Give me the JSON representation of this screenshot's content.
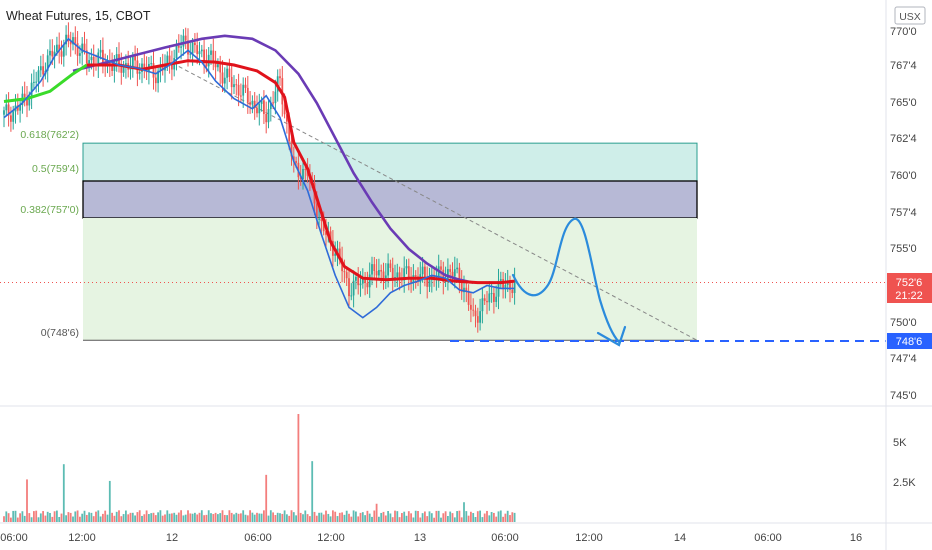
{
  "title": "Wheat Futures, 15, CBOT",
  "currency_label": "USX",
  "colors": {
    "up": "#26a69a",
    "down": "#ef5350",
    "ma_green": "#3adb2a",
    "ma_red": "#e0121b",
    "ma_blue": "#2f6bd8",
    "ma_purple": "#6a3bb5",
    "drawing": "#2b8bdc",
    "fib_label": "#6aa84f",
    "current_tag": "#ef5350",
    "target_tag": "#2962ff"
  },
  "price_axis": {
    "ticks": [
      "770'0",
      "767'4",
      "765'0",
      "762'4",
      "760'0",
      "757'4",
      "755'0",
      "750'0",
      "747'4",
      "745'0"
    ],
    "current_price": "752'6",
    "countdown": "21:22",
    "target_price": "748'6"
  },
  "volume_axis": {
    "ticks": [
      "5K",
      "2.5K"
    ]
  },
  "time_axis": {
    "ticks": [
      "06:00",
      "12:00",
      "12",
      "06:00",
      "12:00",
      "13",
      "06:00",
      "12:00",
      "14",
      "06:00",
      "16"
    ]
  },
  "fib_levels": [
    {
      "label": "0.618(762'2)",
      "price": 762.25
    },
    {
      "label": "0.5(759'4)",
      "price": 759.5
    },
    {
      "label": "0.382(757'0)",
      "price": 757.0
    },
    {
      "label": "0(748'6)",
      "price": 748.75
    }
  ],
  "chart_data": {
    "type": "candlestick",
    "title": "Wheat Futures, 15, CBOT",
    "symbol": "Wheat Futures",
    "interval": "15",
    "exchange": "CBOT",
    "price_unit": "USX",
    "y_range": [
      744,
      771
    ],
    "current_price": 752.75,
    "target_price": 748.75,
    "x_ticks": [
      "06:00",
      "12:00",
      "12",
      "06:00",
      "12:00",
      "13",
      "06:00",
      "12:00",
      "14",
      "06:00",
      "16"
    ],
    "close_path": [
      [
        0,
        764.2
      ],
      [
        6,
        764.6
      ],
      [
        12,
        766.0
      ],
      [
        18,
        767.8
      ],
      [
        24,
        768.8
      ],
      [
        30,
        769.3
      ],
      [
        36,
        768.0
      ],
      [
        42,
        768.0
      ],
      [
        48,
        767.6
      ],
      [
        54,
        767.6
      ],
      [
        60,
        767.5
      ],
      [
        66,
        767.0
      ],
      [
        72,
        767.8
      ],
      [
        78,
        769.2
      ],
      [
        84,
        768.5
      ],
      [
        90,
        768.0
      ],
      [
        96,
        766.8
      ],
      [
        102,
        766.0
      ],
      [
        108,
        765.0
      ],
      [
        114,
        764.2
      ],
      [
        120,
        766.5
      ],
      [
        126,
        760.5
      ],
      [
        132,
        760.2
      ],
      [
        138,
        756.5
      ],
      [
        144,
        755.0
      ],
      [
        150,
        752.3
      ],
      [
        156,
        752.8
      ],
      [
        162,
        753.5
      ],
      [
        168,
        753.3
      ],
      [
        174,
        753.2
      ],
      [
        180,
        753.1
      ],
      [
        186,
        753.0
      ],
      [
        192,
        753.4
      ],
      [
        198,
        753.2
      ],
      [
        204,
        750.3
      ],
      [
        210,
        751.5
      ],
      [
        216,
        752.5
      ],
      [
        222,
        752.6
      ]
    ],
    "ma_fast": [
      [
        0,
        764.0
      ],
      [
        8,
        765.0
      ],
      [
        16,
        766.5
      ],
      [
        22,
        768.2
      ],
      [
        28,
        769.4
      ],
      [
        34,
        768.6
      ],
      [
        42,
        768.1
      ],
      [
        50,
        767.6
      ],
      [
        58,
        767.4
      ],
      [
        66,
        767.0
      ],
      [
        72,
        767.6
      ],
      [
        80,
        768.6
      ],
      [
        86,
        767.8
      ],
      [
        92,
        766.5
      ],
      [
        100,
        765.3
      ],
      [
        108,
        764.6
      ],
      [
        114,
        765.5
      ],
      [
        120,
        764.0
      ],
      [
        126,
        761.0
      ],
      [
        132,
        759.0
      ],
      [
        138,
        756.0
      ],
      [
        144,
        753.2
      ],
      [
        150,
        751.0
      ],
      [
        156,
        750.3
      ],
      [
        162,
        751.0
      ],
      [
        168,
        752.0
      ],
      [
        174,
        752.5
      ],
      [
        180,
        752.8
      ],
      [
        186,
        753.2
      ],
      [
        192,
        753.0
      ],
      [
        198,
        752.2
      ],
      [
        204,
        752.0
      ],
      [
        210,
        752.5
      ],
      [
        216,
        752.3
      ],
      [
        222,
        752.3
      ]
    ],
    "ma_slow": [
      [
        0,
        765.1
      ],
      [
        10,
        765.3
      ],
      [
        20,
        765.8
      ],
      [
        30,
        767.0
      ],
      [
        36,
        767.6
      ],
      [
        50,
        767.6
      ],
      [
        60,
        767.3
      ],
      [
        70,
        767.6
      ],
      [
        80,
        767.9
      ],
      [
        92,
        767.8
      ],
      [
        100,
        767.6
      ],
      [
        110,
        767.2
      ],
      [
        118,
        766.4
      ],
      [
        122,
        765.4
      ],
      [
        126,
        762.3
      ],
      [
        132,
        760.5
      ],
      [
        136,
        758.5
      ],
      [
        142,
        755.5
      ],
      [
        148,
        753.8
      ],
      [
        156,
        753.0
      ],
      [
        166,
        752.9
      ],
      [
        176,
        753.0
      ],
      [
        186,
        753.0
      ],
      [
        196,
        752.8
      ],
      [
        206,
        752.7
      ],
      [
        216,
        752.7
      ],
      [
        222,
        752.8
      ]
    ],
    "ma_trend": [
      [
        30,
        767.2
      ],
      [
        50,
        768.0
      ],
      [
        70,
        768.8
      ],
      [
        86,
        769.4
      ],
      [
        96,
        769.6
      ],
      [
        108,
        769.4
      ],
      [
        118,
        768.6
      ],
      [
        128,
        767.0
      ],
      [
        136,
        765.0
      ],
      [
        144,
        762.6
      ],
      [
        152,
        760.2
      ],
      [
        160,
        758.2
      ],
      [
        168,
        756.4
      ],
      [
        176,
        755.0
      ],
      [
        184,
        754.0
      ],
      [
        192,
        753.2
      ],
      [
        198,
        752.9
      ],
      [
        204,
        752.7
      ]
    ],
    "trendline": [
      [
        76,
        767.5
      ],
      [
        275,
        748.75
      ]
    ],
    "volume_peaks": [
      [
        10,
        2800
      ],
      [
        26,
        3800
      ],
      [
        46,
        2700
      ],
      [
        114,
        3100
      ],
      [
        128,
        7100
      ],
      [
        134,
        4000
      ],
      [
        162,
        1200
      ],
      [
        200,
        1300
      ]
    ]
  }
}
